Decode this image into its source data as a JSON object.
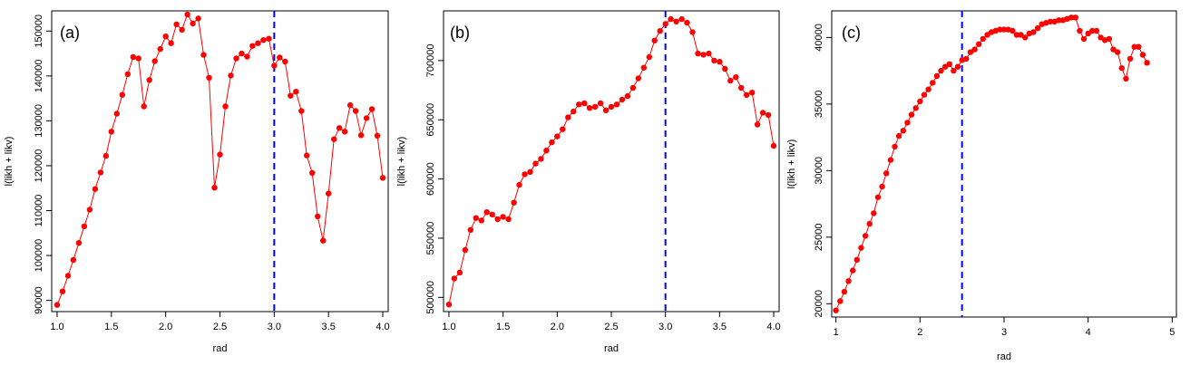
{
  "chart_data": [
    {
      "type": "line",
      "panel_label": "(a)",
      "xlabel": "rad",
      "ylabel": "l(likh + likv)",
      "xlim": [
        0.95,
        4.05
      ],
      "ylim": [
        87500,
        154500
      ],
      "xticks": [
        "1.0",
        "1.5",
        "2.0",
        "2.5",
        "3.0",
        "3.5",
        "4.0"
      ],
      "yticks": [
        "90000",
        "100000",
        "110000",
        "120000",
        "130000",
        "140000",
        "150000"
      ],
      "vline": 3.0,
      "marker_color": "#ff0000",
      "line_color": "#ff0000",
      "vline_color": "#0000ff",
      "x_start": 1.0,
      "x_step": 0.05,
      "y": [
        89000,
        92000,
        95500,
        99000,
        102800,
        106500,
        110200,
        114800,
        118500,
        122200,
        127600,
        131600,
        135800,
        140400,
        144200,
        143900,
        133200,
        139100,
        143300,
        146000,
        148800,
        147300,
        151500,
        150300,
        153700,
        151700,
        152800,
        144700,
        139600,
        115100,
        122500,
        133200,
        140100,
        143900,
        145000,
        144300,
        146700,
        147300,
        148000,
        148300,
        142300,
        144100,
        143200,
        135600,
        136500,
        132200,
        122300,
        118400,
        108700,
        103300,
        113800,
        125900,
        128400,
        127600,
        133500,
        132200,
        126800,
        130600,
        132600,
        126700,
        117300
      ]
    },
    {
      "type": "line",
      "panel_label": "(b)",
      "xlabel": "rad",
      "ylabel": "l(likh + likv)",
      "xlim": [
        0.95,
        4.05
      ],
      "ylim": [
        488000,
        742000
      ],
      "xticks": [
        "1.0",
        "1.5",
        "2.0",
        "2.5",
        "3.0",
        "3.5",
        "4.0"
      ],
      "yticks": [
        "500000",
        "550000",
        "600000",
        "650000",
        "700000"
      ],
      "vline": 3.0,
      "marker_color": "#ff0000",
      "line_color": "#ff0000",
      "vline_color": "#0000ff",
      "x_start": 1.0,
      "x_step": 0.05,
      "y": [
        494000,
        516000,
        521000,
        540000,
        557000,
        567000,
        565000,
        572000,
        570000,
        566000,
        568000,
        566000,
        580000,
        595000,
        604000,
        606000,
        613000,
        617000,
        624000,
        631000,
        636000,
        642000,
        652000,
        657000,
        663000,
        664000,
        660000,
        661000,
        664000,
        658000,
        661000,
        663000,
        667000,
        670000,
        677000,
        685000,
        694000,
        703000,
        717000,
        725000,
        731000,
        735000,
        733000,
        735000,
        732000,
        724000,
        706000,
        705000,
        706000,
        700000,
        699000,
        693000,
        683000,
        686000,
        677000,
        671000,
        673000,
        646000,
        656000,
        654000,
        628000
      ]
    },
    {
      "type": "line",
      "panel_label": "(c)",
      "xlabel": "rad",
      "ylabel": "l(likh + likv)",
      "xlim": [
        0.95,
        5.05
      ],
      "ylim": [
        19000,
        42000
      ],
      "xticks": [
        "1",
        "2",
        "3",
        "4",
        "5"
      ],
      "yticks": [
        "20000",
        "25000",
        "30000",
        "35000",
        "40000"
      ],
      "vline": 2.5,
      "marker_color": "#ff0000",
      "line_color": "#ff0000",
      "vline_color": "#0000ff",
      "x_start": 1.0,
      "x_step": 0.05,
      "y": [
        19500,
        20200,
        20900,
        21700,
        22500,
        23300,
        24200,
        25100,
        26000,
        26800,
        28000,
        28800,
        29800,
        30800,
        31800,
        32600,
        33000,
        33600,
        34200,
        34700,
        35200,
        35700,
        36100,
        36600,
        37100,
        37500,
        37800,
        38000,
        37500,
        37800,
        38300,
        38400,
        38900,
        39100,
        39500,
        39900,
        40200,
        40400,
        40500,
        40600,
        40600,
        40600,
        40500,
        40200,
        40200,
        40000,
        40300,
        40400,
        40700,
        41000,
        41100,
        41200,
        41200,
        41300,
        41300,
        41400,
        41500,
        41500,
        40500,
        39900,
        40300,
        40500,
        40500,
        40000,
        39800,
        39900,
        39100,
        38900,
        37700,
        36900,
        38400,
        39300,
        39300,
        38700,
        38100
      ]
    }
  ]
}
